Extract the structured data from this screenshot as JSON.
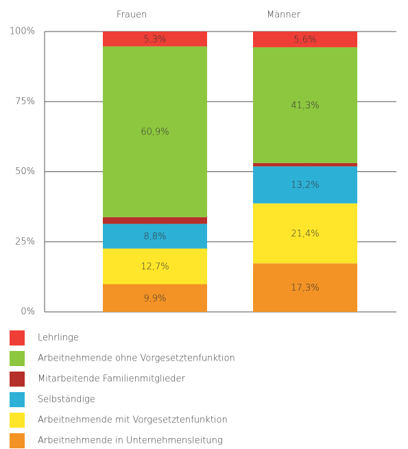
{
  "chart_data": {
    "type": "stacked_bar",
    "categories": [
      "Frauen",
      "Männer"
    ],
    "series": [
      {
        "name": "Arbeitnehmende in Unternehmensleitung",
        "color": "#f39325",
        "values": [
          9.9,
          17.3
        ],
        "value_labels": [
          "9,9%",
          "17,3%"
        ]
      },
      {
        "name": "Arbeitnehmende mit Vorgesetztenfunktion",
        "color": "#ffe62a",
        "values": [
          12.7,
          21.4
        ],
        "value_labels": [
          "12,7%",
          "21,4%"
        ]
      },
      {
        "name": "Selbständige",
        "color": "#2db0d6",
        "values": [
          8.8,
          13.2
        ],
        "value_labels": [
          "8,8%",
          "13,2%"
        ]
      },
      {
        "name": "Mitarbeitende Familienmitglieder",
        "color": "#b5302a",
        "values": [
          2.4,
          1.2
        ],
        "value_labels": [
          "2,4%",
          "1,2%"
        ]
      },
      {
        "name": "Arbeitnehmende ohne Vorgesetztenfunktion",
        "color": "#8dc63f",
        "values": [
          60.9,
          41.3
        ],
        "value_labels": [
          "60,9%",
          "41,3%"
        ]
      },
      {
        "name": "Lehrlinge",
        "color": "#ee3e35",
        "values": [
          5.3,
          5.6
        ],
        "value_labels": [
          "5,3%",
          "5,6%"
        ]
      }
    ],
    "ylim": [
      0,
      100
    ],
    "yticks": [
      {
        "value": 0,
        "label": "0%"
      },
      {
        "value": 25,
        "label": "25%"
      },
      {
        "value": 50,
        "label": "50%"
      },
      {
        "value": 75,
        "label": "75%"
      },
      {
        "value": 100,
        "label": "100%"
      }
    ],
    "grid": true
  }
}
